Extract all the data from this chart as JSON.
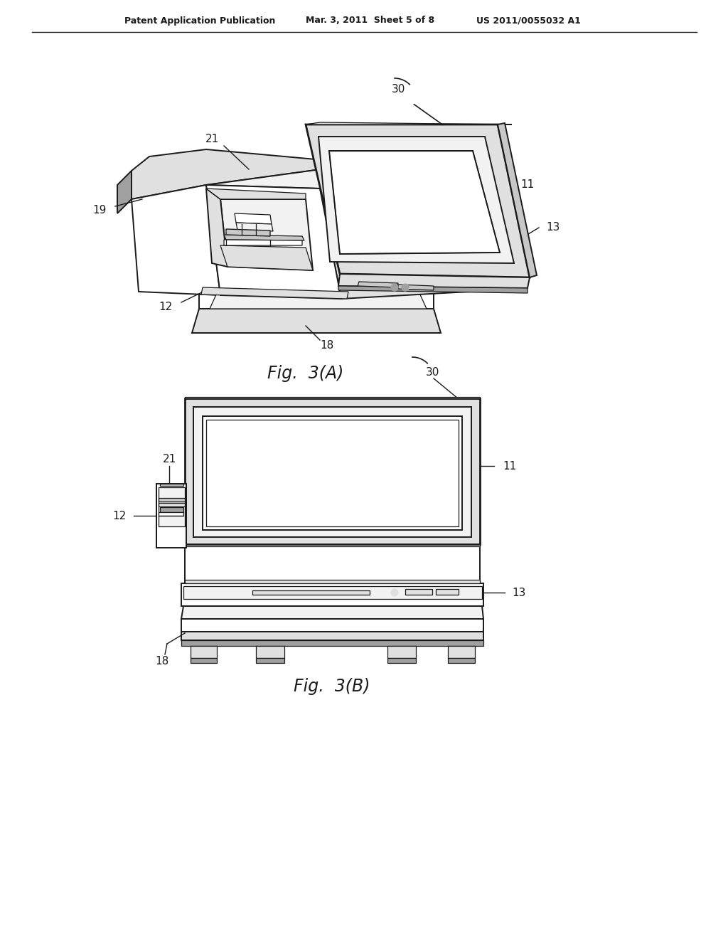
{
  "background_color": "#ffffff",
  "header_left": "Patent Application Publication",
  "header_center": "Mar. 3, 2011  Sheet 5 of 8",
  "header_right": "US 2011/0055032 A1",
  "fig_a_label": "Fig.  3(A)",
  "fig_b_label": "Fig.  3(B)",
  "line_color": "#1a1a1a",
  "label_color": "#1a1a1a",
  "gray1": "#c8c8c8",
  "gray2": "#e0e0e0",
  "gray3": "#a0a0a0",
  "gray4": "#f2f2f2"
}
